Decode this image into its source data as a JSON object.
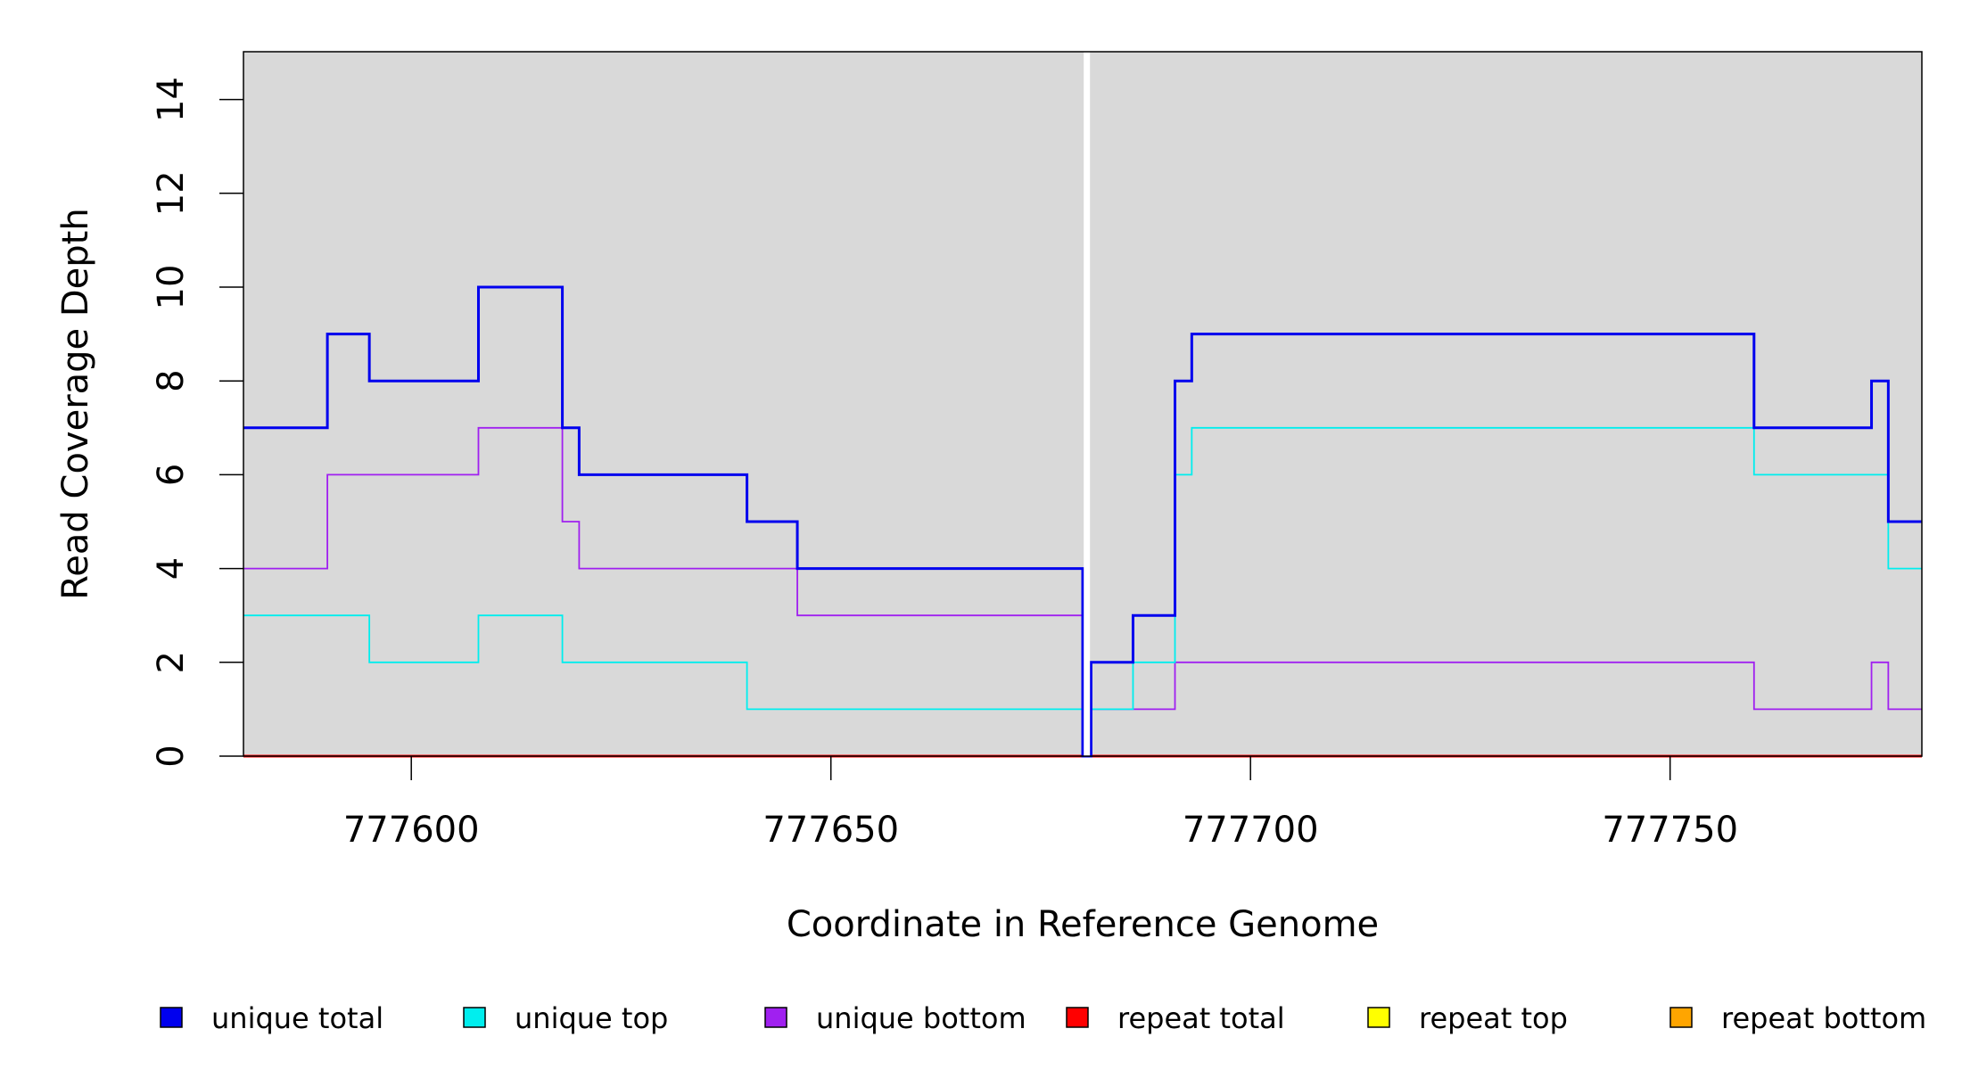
{
  "chart_data": {
    "type": "line",
    "xlabel": "Coordinate in Reference Genome",
    "ylabel": "Read Coverage Depth",
    "xlim": [
      777580,
      777780
    ],
    "ylim": [
      0,
      15
    ],
    "x_ticks": [
      777600,
      777650,
      777700,
      777750
    ],
    "y_ticks": [
      0,
      2,
      4,
      6,
      8,
      10,
      12,
      14
    ],
    "grid": false,
    "plot_background": "#d9d9d9",
    "marker_line": {
      "x": 777680.5,
      "color": "#ffffff"
    },
    "legend_position": "bottom",
    "series": [
      {
        "name": "unique total",
        "color": "#0000ee",
        "style": "step",
        "points": [
          [
            777580,
            7
          ],
          [
            777590,
            9
          ],
          [
            777595,
            8
          ],
          [
            777608,
            10
          ],
          [
            777618,
            7
          ],
          [
            777620,
            6
          ],
          [
            777640,
            5
          ],
          [
            777646,
            4
          ],
          [
            777680,
            0
          ],
          [
            777681,
            2
          ],
          [
            777686,
            3
          ],
          [
            777691,
            8
          ],
          [
            777693,
            9
          ],
          [
            777760,
            7
          ],
          [
            777774,
            8
          ],
          [
            777776,
            5
          ],
          [
            777780,
            5
          ]
        ]
      },
      {
        "name": "unique top",
        "color": "#00eeee",
        "style": "step",
        "points": [
          [
            777580,
            3
          ],
          [
            777595,
            2
          ],
          [
            777608,
            3
          ],
          [
            777618,
            2
          ],
          [
            777640,
            1
          ],
          [
            777680,
            0
          ],
          [
            777681,
            1
          ],
          [
            777686,
            2
          ],
          [
            777691,
            6
          ],
          [
            777693,
            7
          ],
          [
            777760,
            6
          ],
          [
            777776,
            4
          ],
          [
            777780,
            4
          ]
        ]
      },
      {
        "name": "unique bottom",
        "color": "#a020f0",
        "style": "step",
        "points": [
          [
            777580,
            4
          ],
          [
            777590,
            6
          ],
          [
            777608,
            7
          ],
          [
            777618,
            5
          ],
          [
            777620,
            4
          ],
          [
            777646,
            3
          ],
          [
            777680,
            0
          ],
          [
            777681,
            1
          ],
          [
            777691,
            2
          ],
          [
            777760,
            1
          ],
          [
            777774,
            2
          ],
          [
            777776,
            1
          ],
          [
            777780,
            1
          ]
        ]
      },
      {
        "name": "repeat total",
        "color": "#ff0000",
        "style": "step",
        "points": [
          [
            777580,
            0
          ],
          [
            777780,
            0
          ]
        ]
      },
      {
        "name": "repeat top",
        "color": "#ffff00",
        "style": "step",
        "points": [
          [
            777580,
            0
          ],
          [
            777780,
            0
          ]
        ]
      },
      {
        "name": "repeat bottom",
        "color": "#ffa500",
        "style": "step",
        "points": [
          [
            777580,
            0
          ],
          [
            777780,
            0
          ]
        ]
      }
    ]
  }
}
